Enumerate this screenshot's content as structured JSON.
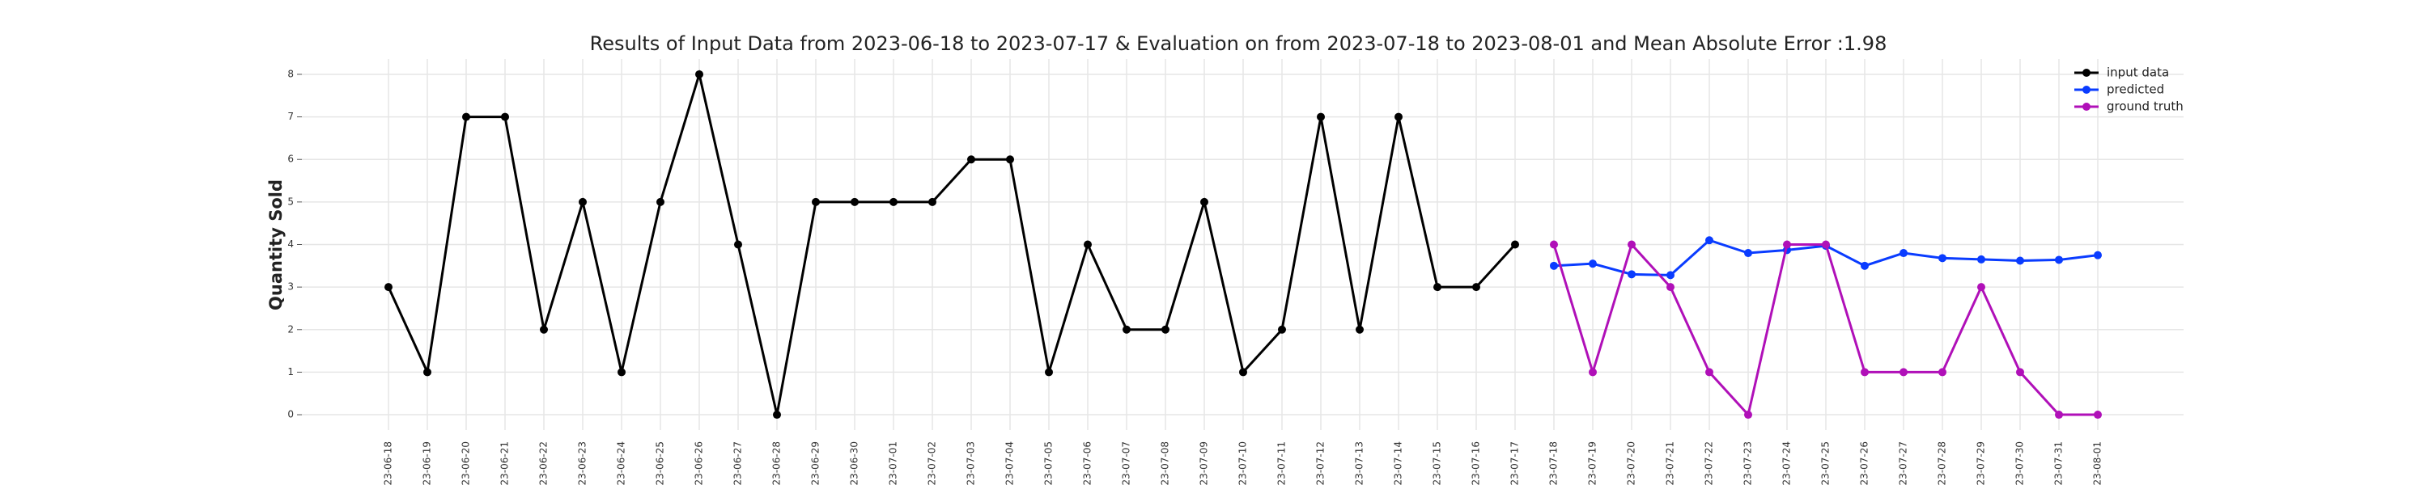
{
  "chart_data": {
    "type": "line",
    "title": "Results of Input Data from 2023-06-18 to 2023-07-17 & Evaluation on from 2023-07-18 to 2023-08-01 and Mean Absolute Error  :1.98",
    "y_label": "Quantity Sold",
    "x": [
      "2023-06-18",
      "2023-06-19",
      "2023-06-20",
      "2023-06-21",
      "2023-06-22",
      "2023-06-23",
      "2023-06-24",
      "2023-06-25",
      "2023-06-26",
      "2023-06-27",
      "2023-06-28",
      "2023-06-29",
      "2023-06-30",
      "2023-07-01",
      "2023-07-02",
      "2023-07-03",
      "2023-07-04",
      "2023-07-05",
      "2023-07-06",
      "2023-07-07",
      "2023-07-08",
      "2023-07-09",
      "2023-07-10",
      "2023-07-11",
      "2023-07-12",
      "2023-07-13",
      "2023-07-14",
      "2023-07-15",
      "2023-07-16",
      "2023-07-17",
      "2023-07-18",
      "2023-07-19",
      "2023-07-20",
      "2023-07-21",
      "2023-07-22",
      "2023-07-23",
      "2023-07-24",
      "2023-07-25",
      "2023-07-26",
      "2023-07-27",
      "2023-07-28",
      "2023-07-29",
      "2023-07-30",
      "2023-07-31",
      "2023-08-01"
    ],
    "series": [
      {
        "name": "input data",
        "color": "#000000",
        "values": [
          3,
          1,
          7,
          7,
          2,
          5,
          1,
          5,
          8,
          4,
          0,
          5,
          5,
          5,
          5,
          6,
          6,
          1,
          4,
          2,
          2,
          5,
          1,
          2,
          7,
          2,
          7,
          3,
          3,
          4,
          null,
          null,
          null,
          null,
          null,
          null,
          null,
          null,
          null,
          null,
          null,
          null,
          null,
          null,
          null
        ]
      },
      {
        "name": "predicted",
        "color": "#0a3cff",
        "values": [
          null,
          null,
          null,
          null,
          null,
          null,
          null,
          null,
          null,
          null,
          null,
          null,
          null,
          null,
          null,
          null,
          null,
          null,
          null,
          null,
          null,
          null,
          null,
          null,
          null,
          null,
          null,
          null,
          null,
          null,
          3.5,
          3.55,
          3.3,
          3.28,
          4.1,
          3.8,
          3.87,
          3.97,
          3.5,
          3.8,
          3.68,
          3.65,
          3.62,
          3.64,
          3.75
        ]
      },
      {
        "name": "ground truth",
        "color": "#b010b8",
        "values": [
          null,
          null,
          null,
          null,
          null,
          null,
          null,
          null,
          null,
          null,
          null,
          null,
          null,
          null,
          null,
          null,
          null,
          null,
          null,
          null,
          null,
          null,
          null,
          null,
          null,
          null,
          null,
          null,
          null,
          null,
          4,
          1,
          4,
          3,
          1,
          0,
          4,
          4,
          1,
          1,
          1,
          3,
          1,
          0,
          0
        ]
      }
    ],
    "ylim": [
      -0.36,
      8.36
    ],
    "yticks": [
      0,
      1,
      2,
      3,
      4,
      5,
      6,
      7,
      8
    ],
    "grid": true,
    "legend": "upper right"
  }
}
